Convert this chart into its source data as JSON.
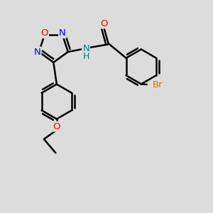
{
  "bg_color": "#dcdcdc",
  "bond_color": "#000000",
  "bond_width": 1.8,
  "atom_colors": {
    "O": "#ff0000",
    "N": "#0000ff",
    "NH": "#008080",
    "H": "#008080",
    "Br": "#cc7700"
  },
  "font_size": 9.5,
  "fig_size": [
    3.0,
    3.0
  ],
  "dpi": 100
}
